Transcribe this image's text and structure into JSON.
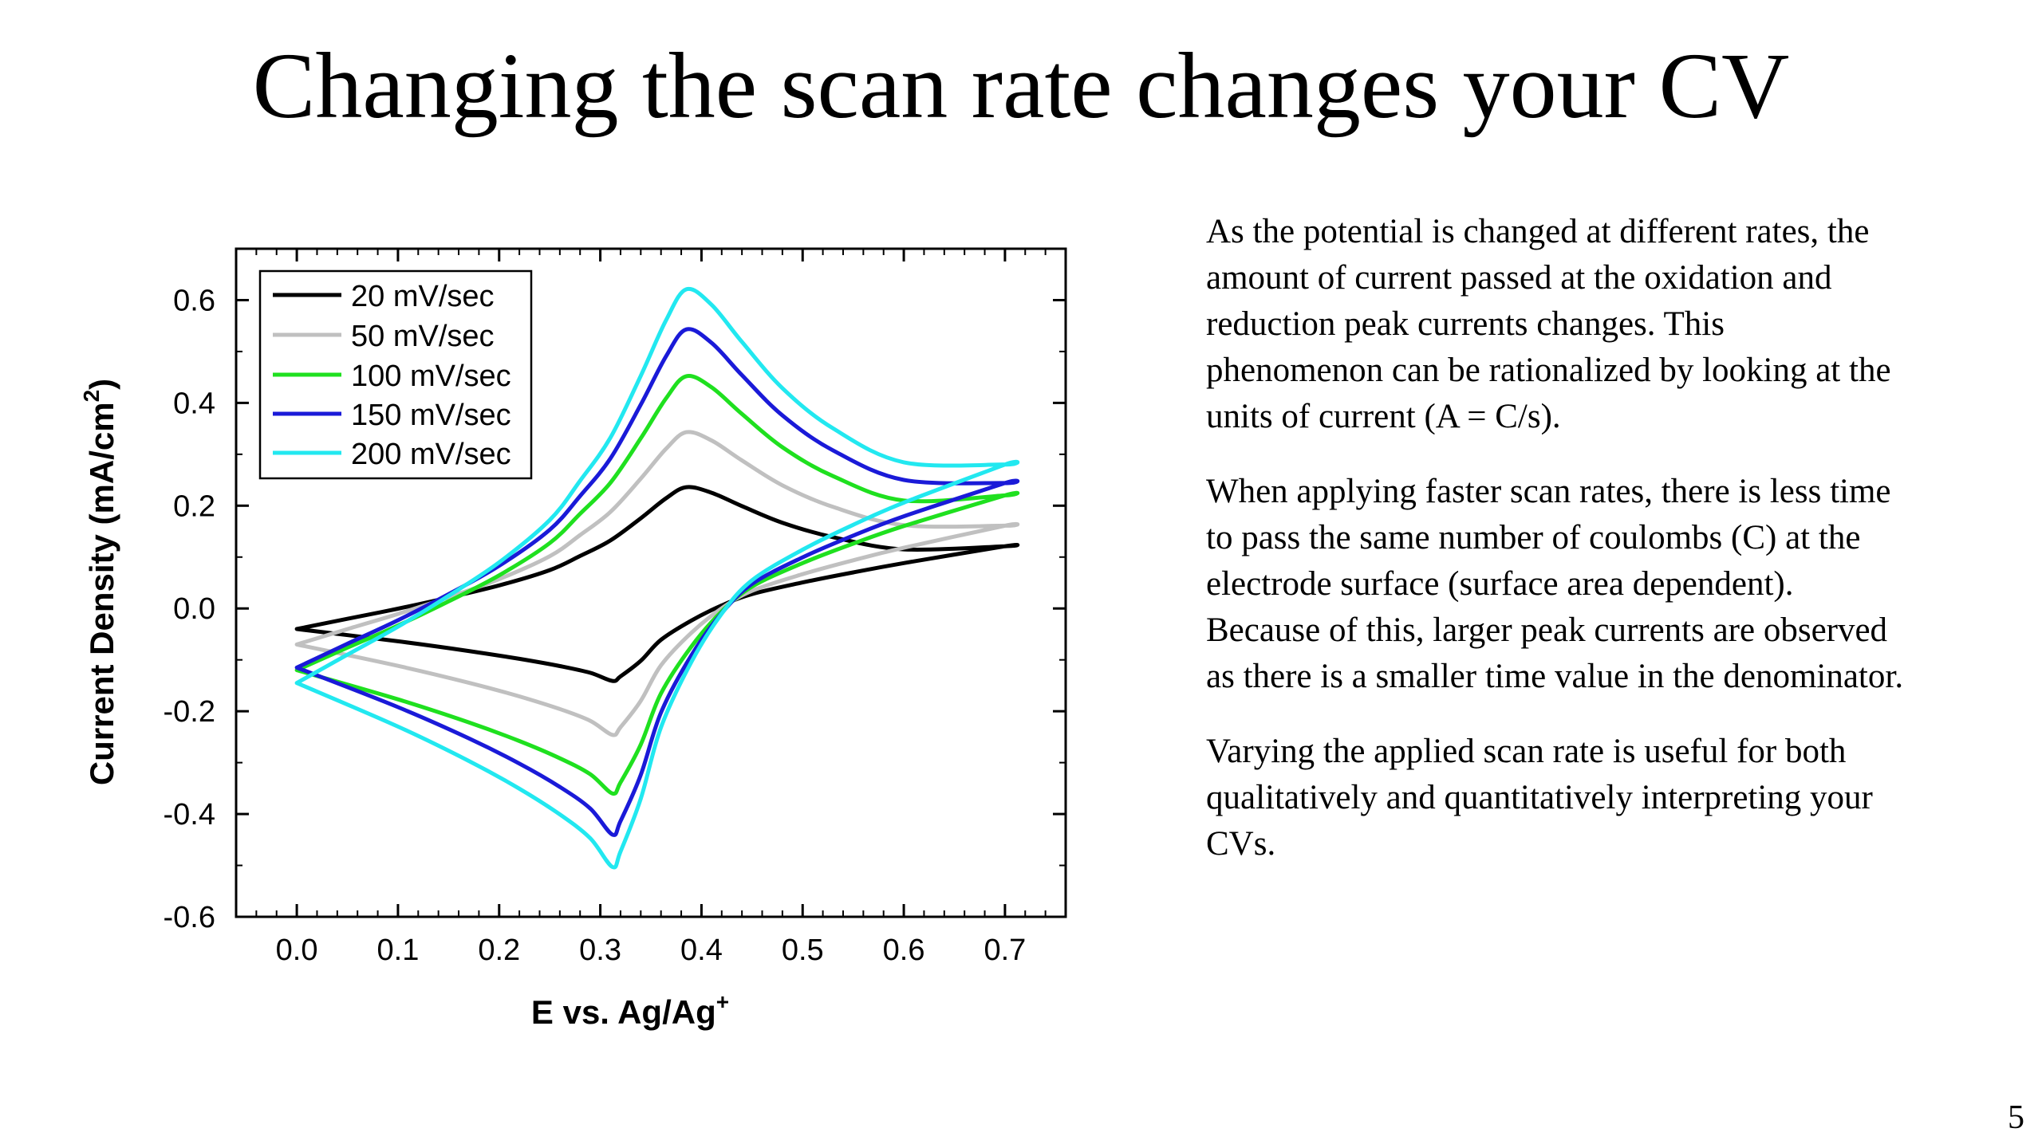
{
  "slide": {
    "title": "Changing the scan rate changes your CV",
    "paragraphs": [
      "As the potential is changed at different rates, the amount of current passed at the oxidation and reduction peak currents changes. This phenomenon can be rationalized by looking at the units of current (A = C/s).",
      "When applying faster scan rates, there is less time to pass the same number of coulombs (C) at the electrode surface (surface area dependent). Because of this, larger peak currents are observed as there is a smaller time value in the denominator.",
      "Varying the applied scan rate is useful for both qualitatively and quantitatively interpreting your CVs."
    ],
    "page_number": "5"
  },
  "chart_data": {
    "type": "line",
    "title": "",
    "xlabel": "E vs. Ag/Ag",
    "xlabel_superscript": "+",
    "ylabel": "Current Density (mA/cm",
    "ylabel_superscript": "2",
    "ylabel_suffix": ")",
    "xlim": [
      -0.06,
      0.76
    ],
    "ylim": [
      -0.6,
      0.7
    ],
    "xticks": [
      "0.0",
      "0.1",
      "0.2",
      "0.3",
      "0.4",
      "0.5",
      "0.6",
      "0.7"
    ],
    "yticks": [
      "-0.6",
      "-0.4",
      "-0.2",
      "0.0",
      "0.2",
      "0.4",
      "0.6"
    ],
    "legend_position": "top-left",
    "grid": false,
    "series": [
      {
        "name": "20 mV/sec",
        "color": "#000000",
        "anodic_peak": [
          0.385,
          0.222
        ],
        "cathodic_peak": [
          0.312,
          -0.141
        ],
        "start_current": -0.04,
        "switch_current": 0.121
      },
      {
        "name": "50 mV/sec",
        "color": "#c0c0c0",
        "anodic_peak": [
          0.385,
          0.329
        ],
        "cathodic_peak": [
          0.312,
          -0.246
        ],
        "start_current": -0.07,
        "switch_current": 0.161
      },
      {
        "name": "100 mV/sec",
        "color": "#1fe01f",
        "anodic_peak": [
          0.385,
          0.438
        ],
        "cathodic_peak": [
          0.312,
          -0.36
        ],
        "start_current": -0.12,
        "switch_current": 0.22
      },
      {
        "name": "150 mV/sec",
        "color": "#1a1ad8",
        "anodic_peak": [
          0.385,
          0.529
        ],
        "cathodic_peak": [
          0.312,
          -0.44
        ],
        "start_current": -0.115,
        "switch_current": 0.244
      },
      {
        "name": "200 mV/sec",
        "color": "#22e8f0",
        "anodic_peak": [
          0.385,
          0.607
        ],
        "cathodic_peak": [
          0.312,
          -0.503
        ],
        "start_current": -0.145,
        "switch_current": 0.28
      }
    ]
  }
}
